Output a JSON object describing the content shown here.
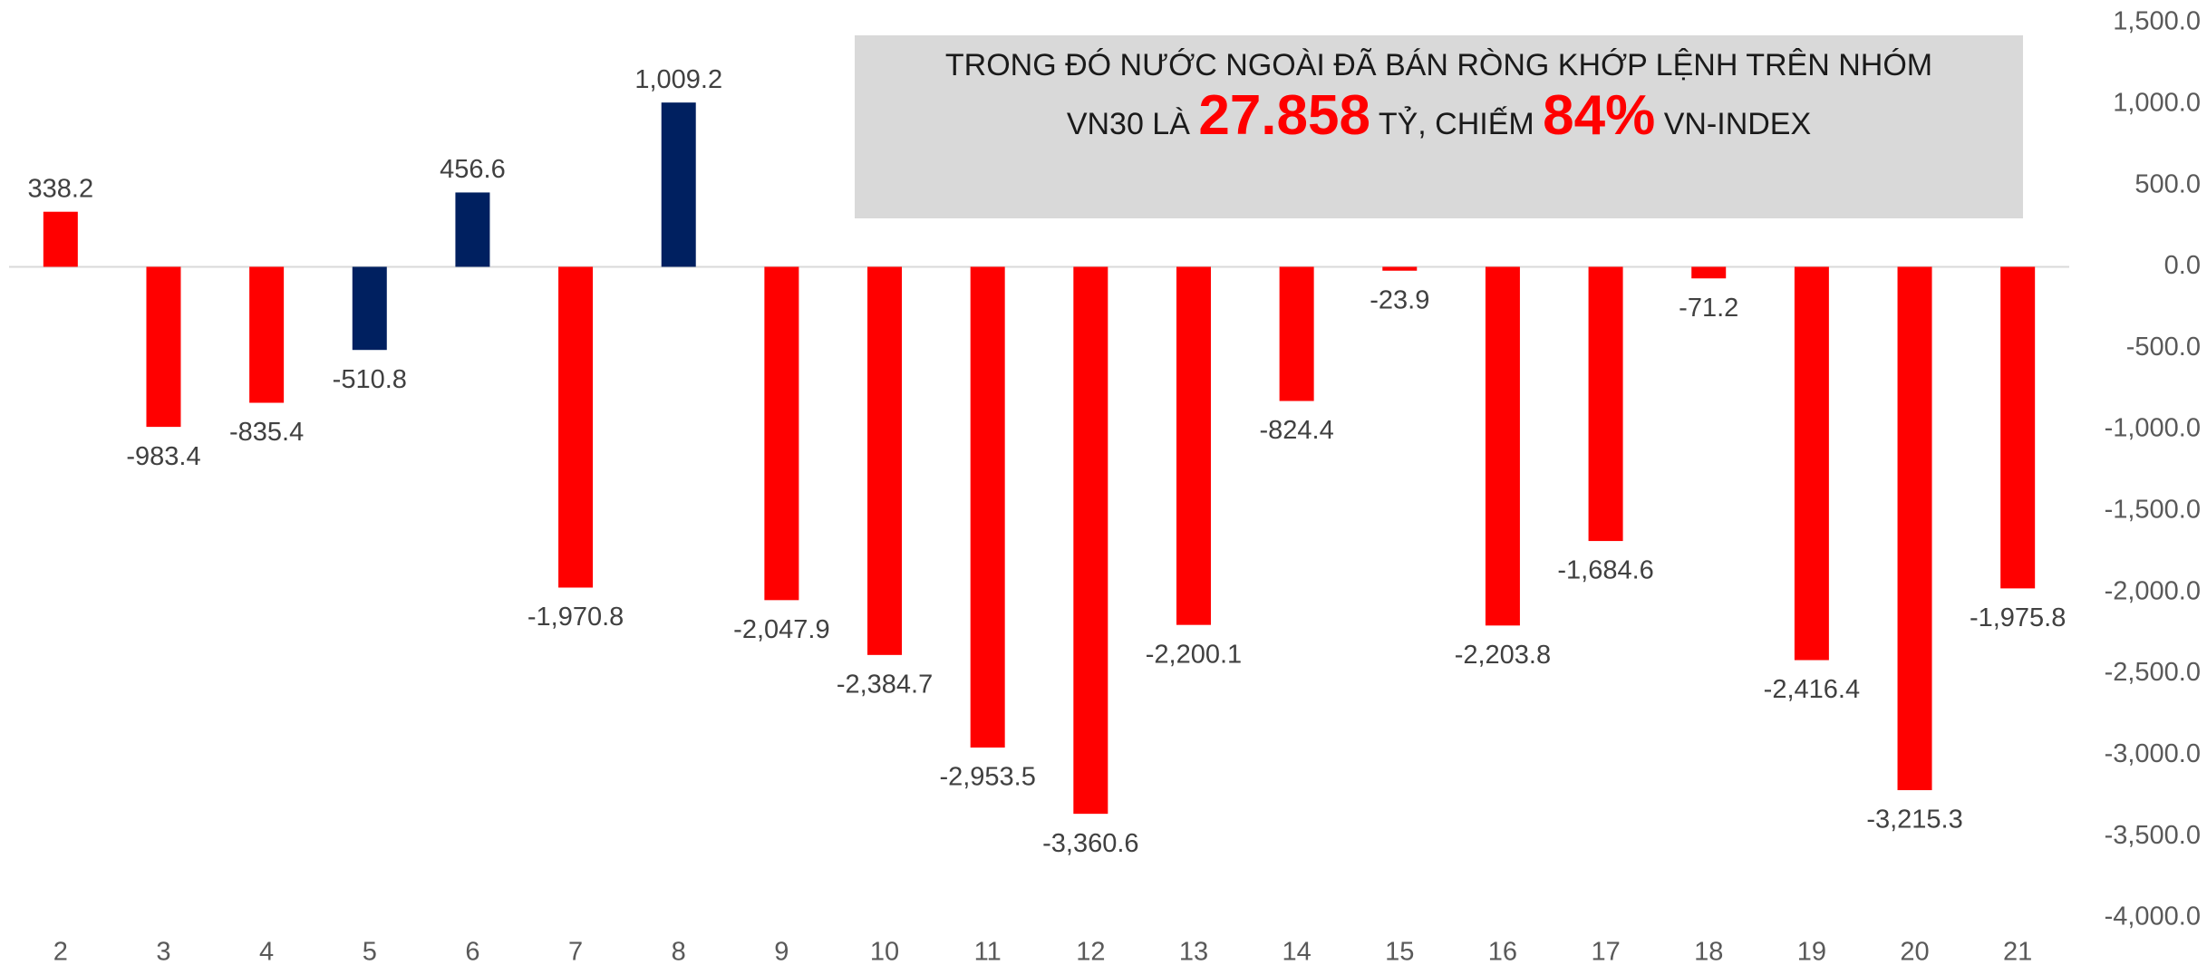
{
  "chart_data": {
    "type": "bar",
    "annotation": {
      "line1": "TRONG ĐÓ NƯỚC NGOÀI ĐÃ BÁN RÒNG KHỚP LỆNH TRÊN NHÓM",
      "line2": [
        "VN30 LÀ ",
        "27.858",
        " TỶ, CHIẾM ",
        "84%",
        " VN-INDEX"
      ]
    },
    "categories": [
      "2",
      "3",
      "4",
      "5",
      "6",
      "7",
      "8",
      "9",
      "10",
      "11",
      "12",
      "13",
      "14",
      "15",
      "16",
      "17",
      "18",
      "19",
      "20",
      "21"
    ],
    "values": [
      338.2,
      -983.4,
      -835.4,
      -510.8,
      456.6,
      -1970.8,
      1009.2,
      -2047.9,
      -2384.7,
      -2953.5,
      -3360.6,
      -2200.1,
      -824.4,
      -23.9,
      -2203.8,
      -1684.6,
      -71.2,
      -2416.4,
      -3215.3,
      -1975.8
    ],
    "value_labels": [
      "338.2",
      "-983.4",
      "-835.4",
      "-510.8",
      "456.6",
      "-1,970.8",
      "1,009.2",
      "-2,047.9",
      "-2,384.7",
      "-2,953.5",
      "-3,360.6",
      "-2,200.1",
      "-824.4",
      "-23.9",
      "-2,203.8",
      "-1,684.6",
      "-71.2",
      "-2,416.4",
      "-3,215.3",
      "-1,975.8"
    ],
    "colors": [
      "#ff0000",
      "#ff0000",
      "#ff0000",
      "#002060",
      "#002060",
      "#ff0000",
      "#002060",
      "#ff0000",
      "#ff0000",
      "#ff0000",
      "#ff0000",
      "#ff0000",
      "#ff0000",
      "#ff0000",
      "#ff0000",
      "#ff0000",
      "#ff0000",
      "#ff0000",
      "#ff0000",
      "#ff0000"
    ],
    "ylim": [
      -4000,
      1500
    ],
    "yticks": [
      {
        "value": 1500,
        "label": "1,500.0"
      },
      {
        "value": 1000,
        "label": "1,000.0"
      },
      {
        "value": 500,
        "label": "500.0"
      },
      {
        "value": 0,
        "label": "0.0"
      },
      {
        "value": -500,
        "label": "-500.0"
      },
      {
        "value": -1000,
        "label": "-1,000.0"
      },
      {
        "value": -1500,
        "label": "-1,500.0"
      },
      {
        "value": -2000,
        "label": "-2,000.0"
      },
      {
        "value": -2500,
        "label": "-2,500.0"
      },
      {
        "value": -3000,
        "label": "-3,000.0"
      },
      {
        "value": -3500,
        "label": "-3,500.0"
      },
      {
        "value": -4000,
        "label": "-4,000.0"
      }
    ],
    "yaxis_side": "right"
  }
}
